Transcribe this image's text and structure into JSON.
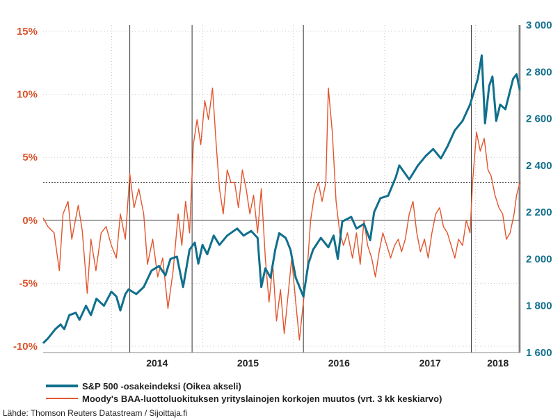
{
  "chart_data": {
    "type": "line",
    "x_axis": {
      "tick_labels": [
        "2014",
        "2015",
        "2016",
        "2017",
        "2018"
      ],
      "tick_dates": [
        "2014-01-01",
        "2015-01-01",
        "2016-01-01",
        "2017-01-01",
        "2018-01-01"
      ],
      "range": [
        "2013-04-01",
        "2018-06-30"
      ]
    },
    "y_left": {
      "tick_labels": [
        "-10%",
        "-5%",
        "0%",
        "5%",
        "10%",
        "15%"
      ],
      "ticks": [
        -10,
        -5,
        0,
        5,
        10,
        15
      ],
      "range": [
        -10.5,
        15.5
      ]
    },
    "y_right": {
      "tick_labels": [
        "1 600",
        "1 800",
        "2 000",
        "2 200",
        "2 400",
        "2 600",
        "2 800",
        "3 000"
      ],
      "ticks": [
        1600,
        1800,
        2000,
        2200,
        2400,
        2600,
        2800,
        3000
      ],
      "range": [
        1600,
        3000
      ]
    },
    "reference_lines": {
      "left_dotted": 3,
      "left_solid": 0
    },
    "event_lines": [
      "2014-03-15",
      "2014-11-20",
      "2016-02-10",
      "2017-12-15",
      "2018-06-25"
    ],
    "series": [
      {
        "name": "S&P 500 -osakeindeksi (Oikea akseli)",
        "axis": "right",
        "color": "#106f8c",
        "points": [
          [
            "2013-04-01",
            1640
          ],
          [
            "2013-04-20",
            1660
          ],
          [
            "2013-05-20",
            1700
          ],
          [
            "2013-06-10",
            1720
          ],
          [
            "2013-06-25",
            1700
          ],
          [
            "2013-07-15",
            1760
          ],
          [
            "2013-08-10",
            1770
          ],
          [
            "2013-08-25",
            1740
          ],
          [
            "2013-09-20",
            1800
          ],
          [
            "2013-10-10",
            1760
          ],
          [
            "2013-11-01",
            1830
          ],
          [
            "2013-12-01",
            1800
          ],
          [
            "2013-12-31",
            1860
          ],
          [
            "2014-01-20",
            1840
          ],
          [
            "2014-02-05",
            1780
          ],
          [
            "2014-02-25",
            1850
          ],
          [
            "2014-03-10",
            1870
          ],
          [
            "2014-04-10",
            1850
          ],
          [
            "2014-05-10",
            1880
          ],
          [
            "2014-06-10",
            1950
          ],
          [
            "2014-07-10",
            1970
          ],
          [
            "2014-08-05",
            1930
          ],
          [
            "2014-08-25",
            2000
          ],
          [
            "2014-09-20",
            2010
          ],
          [
            "2014-10-15",
            1880
          ],
          [
            "2014-11-10",
            2040
          ],
          [
            "2014-12-01",
            2070
          ],
          [
            "2014-12-15",
            1980
          ],
          [
            "2015-01-01",
            2060
          ],
          [
            "2015-01-20",
            2020
          ],
          [
            "2015-02-15",
            2100
          ],
          [
            "2015-03-10",
            2060
          ],
          [
            "2015-04-10",
            2100
          ],
          [
            "2015-05-20",
            2130
          ],
          [
            "2015-06-15",
            2100
          ],
          [
            "2015-07-15",
            2120
          ],
          [
            "2015-08-10",
            2090
          ],
          [
            "2015-08-25",
            1880
          ],
          [
            "2015-09-10",
            1960
          ],
          [
            "2015-10-01",
            1920
          ],
          [
            "2015-10-20",
            2040
          ],
          [
            "2015-11-05",
            2110
          ],
          [
            "2015-12-01",
            2090
          ],
          [
            "2015-12-20",
            2040
          ],
          [
            "2016-01-10",
            1920
          ],
          [
            "2016-02-10",
            1840
          ],
          [
            "2016-03-01",
            1980
          ],
          [
            "2016-03-20",
            2040
          ],
          [
            "2016-04-20",
            2090
          ],
          [
            "2016-05-20",
            2050
          ],
          [
            "2016-06-10",
            2100
          ],
          [
            "2016-06-27",
            2000
          ],
          [
            "2016-07-15",
            2160
          ],
          [
            "2016-08-20",
            2180
          ],
          [
            "2016-09-10",
            2130
          ],
          [
            "2016-10-10",
            2150
          ],
          [
            "2016-11-04",
            2080
          ],
          [
            "2016-11-20",
            2200
          ],
          [
            "2016-12-15",
            2260
          ],
          [
            "2017-01-15",
            2270
          ],
          [
            "2017-02-15",
            2350
          ],
          [
            "2017-03-01",
            2400
          ],
          [
            "2017-04-10",
            2340
          ],
          [
            "2017-05-15",
            2400
          ],
          [
            "2017-06-15",
            2440
          ],
          [
            "2017-07-15",
            2470
          ],
          [
            "2017-08-15",
            2430
          ],
          [
            "2017-09-10",
            2480
          ],
          [
            "2017-10-10",
            2550
          ],
          [
            "2017-11-10",
            2590
          ],
          [
            "2017-12-10",
            2660
          ],
          [
            "2018-01-10",
            2770
          ],
          [
            "2018-01-26",
            2870
          ],
          [
            "2018-02-08",
            2580
          ],
          [
            "2018-02-25",
            2740
          ],
          [
            "2018-03-10",
            2780
          ],
          [
            "2018-03-25",
            2590
          ],
          [
            "2018-04-10",
            2660
          ],
          [
            "2018-05-01",
            2640
          ],
          [
            "2018-05-20",
            2720
          ],
          [
            "2018-06-01",
            2770
          ],
          [
            "2018-06-15",
            2790
          ],
          [
            "2018-06-28",
            2720
          ]
        ]
      },
      {
        "name": "Moody's BAA-luottoluokituksen yrityslainojen korkojen muutos (vrt. 3 kk keskiarvo)",
        "axis": "left",
        "color": "#e2552c",
        "points": [
          [
            "2013-04-01",
            0.2
          ],
          [
            "2013-04-20",
            -0.5
          ],
          [
            "2013-05-15",
            -1.0
          ],
          [
            "2013-06-05",
            -4.0
          ],
          [
            "2013-06-20",
            0.5
          ],
          [
            "2013-07-10",
            1.5
          ],
          [
            "2013-07-25",
            -1.5
          ],
          [
            "2013-08-20",
            1.2
          ],
          [
            "2013-09-05",
            -0.8
          ],
          [
            "2013-09-25",
            -5.8
          ],
          [
            "2013-10-10",
            -1.5
          ],
          [
            "2013-10-30",
            -4.0
          ],
          [
            "2013-11-20",
            -1.0
          ],
          [
            "2013-12-10",
            -0.5
          ],
          [
            "2013-12-31",
            -2.0
          ],
          [
            "2014-01-20",
            -3.0
          ],
          [
            "2014-02-05",
            0.5
          ],
          [
            "2014-02-25",
            -1.5
          ],
          [
            "2014-03-15",
            3.7
          ],
          [
            "2014-04-01",
            1.0
          ],
          [
            "2014-04-20",
            2.5
          ],
          [
            "2014-05-10",
            0.5
          ],
          [
            "2014-05-25",
            -3.5
          ],
          [
            "2014-06-15",
            -1.5
          ],
          [
            "2014-07-05",
            -4.5
          ],
          [
            "2014-07-25",
            -3.0
          ],
          [
            "2014-08-15",
            -7.0
          ],
          [
            "2014-09-05",
            -4.0
          ],
          [
            "2014-09-25",
            0.5
          ],
          [
            "2014-10-10",
            -2.0
          ],
          [
            "2014-10-25",
            1.5
          ],
          [
            "2014-11-10",
            -1.0
          ],
          [
            "2014-11-25",
            6.0
          ],
          [
            "2014-12-10",
            8.0
          ],
          [
            "2014-12-25",
            6.0
          ],
          [
            "2015-01-10",
            9.5
          ],
          [
            "2015-01-25",
            8.0
          ],
          [
            "2015-02-10",
            10.5
          ],
          [
            "2015-02-25",
            6.0
          ],
          [
            "2015-03-10",
            2.5
          ],
          [
            "2015-03-25",
            0.5
          ],
          [
            "2015-04-10",
            4.0
          ],
          [
            "2015-04-25",
            3.0
          ],
          [
            "2015-05-10",
            3.0
          ],
          [
            "2015-05-25",
            1.0
          ],
          [
            "2015-06-10",
            4.0
          ],
          [
            "2015-06-25",
            2.5
          ],
          [
            "2015-07-10",
            0.5
          ],
          [
            "2015-07-25",
            2.0
          ],
          [
            "2015-08-10",
            -1.0
          ],
          [
            "2015-08-25",
            2.5
          ],
          [
            "2015-09-10",
            -3.0
          ],
          [
            "2015-09-25",
            -6.5
          ],
          [
            "2015-10-10",
            -3.5
          ],
          [
            "2015-10-25",
            -8.0
          ],
          [
            "2015-11-10",
            -5.5
          ],
          [
            "2015-11-25",
            -9.0
          ],
          [
            "2015-12-10",
            -6.0
          ],
          [
            "2015-12-25",
            -3.0
          ],
          [
            "2016-01-10",
            -6.5
          ],
          [
            "2016-01-25",
            -9.5
          ],
          [
            "2016-02-10",
            -6.5
          ],
          [
            "2016-02-25",
            -4.0
          ],
          [
            "2016-03-10",
            0.0
          ],
          [
            "2016-03-25",
            2.0
          ],
          [
            "2016-04-10",
            3.0
          ],
          [
            "2016-04-25",
            1.5
          ],
          [
            "2016-05-10",
            3.0
          ],
          [
            "2016-05-20",
            10.5
          ],
          [
            "2016-06-05",
            7.0
          ],
          [
            "2016-06-20",
            1.5
          ],
          [
            "2016-07-05",
            -1.0
          ],
          [
            "2016-07-20",
            -2.0
          ],
          [
            "2016-08-05",
            -1.0
          ],
          [
            "2016-08-25",
            -3.0
          ],
          [
            "2016-09-10",
            -1.0
          ],
          [
            "2016-09-25",
            -3.5
          ],
          [
            "2016-10-10",
            0.0
          ],
          [
            "2016-10-25",
            -2.0
          ],
          [
            "2016-11-10",
            -3.0
          ],
          [
            "2016-11-25",
            -4.5
          ],
          [
            "2016-12-10",
            -2.5
          ],
          [
            "2016-12-25",
            -1.0
          ],
          [
            "2017-01-10",
            -2.0
          ],
          [
            "2017-01-25",
            -3.0
          ],
          [
            "2017-02-10",
            -2.0
          ],
          [
            "2017-02-25",
            -1.5
          ],
          [
            "2017-03-10",
            -2.5
          ],
          [
            "2017-03-25",
            -1.5
          ],
          [
            "2017-04-10",
            0.5
          ],
          [
            "2017-04-25",
            1.5
          ],
          [
            "2017-05-10",
            -1.0
          ],
          [
            "2017-05-25",
            -2.5
          ],
          [
            "2017-06-10",
            -1.5
          ],
          [
            "2017-06-25",
            -3.0
          ],
          [
            "2017-07-10",
            -1.0
          ],
          [
            "2017-07-25",
            0.5
          ],
          [
            "2017-08-10",
            1.0
          ],
          [
            "2017-08-25",
            -0.5
          ],
          [
            "2017-09-10",
            -1.0
          ],
          [
            "2017-09-25",
            -2.0
          ],
          [
            "2017-10-10",
            -3.0
          ],
          [
            "2017-10-25",
            -1.5
          ],
          [
            "2017-11-10",
            -2.0
          ],
          [
            "2017-11-25",
            0.0
          ],
          [
            "2017-12-10",
            -1.0
          ],
          [
            "2017-12-20",
            3.0
          ],
          [
            "2018-01-05",
            7.0
          ],
          [
            "2018-01-20",
            5.5
          ],
          [
            "2018-02-05",
            6.5
          ],
          [
            "2018-02-20",
            4.0
          ],
          [
            "2018-03-05",
            3.5
          ],
          [
            "2018-03-20",
            2.0
          ],
          [
            "2018-04-05",
            1.0
          ],
          [
            "2018-04-20",
            0.5
          ],
          [
            "2018-05-05",
            -1.5
          ],
          [
            "2018-05-20",
            -1.0
          ],
          [
            "2018-06-05",
            0.5
          ],
          [
            "2018-06-15",
            2.0
          ],
          [
            "2018-06-28",
            3.0
          ]
        ]
      }
    ]
  },
  "legend": {
    "items": [
      {
        "label": "S&P 500 -osakeindeksi (Oikea akseli)",
        "color": "#106f8c"
      },
      {
        "label": "Moody's BAA-luottoluokituksen yrityslainojen korkojen muutos (vrt. 3 kk keskiarvo)",
        "color": "#e2552c"
      }
    ]
  },
  "source": "Lähde: Thomson Reuters Datastream / Sijoittaja.fi"
}
